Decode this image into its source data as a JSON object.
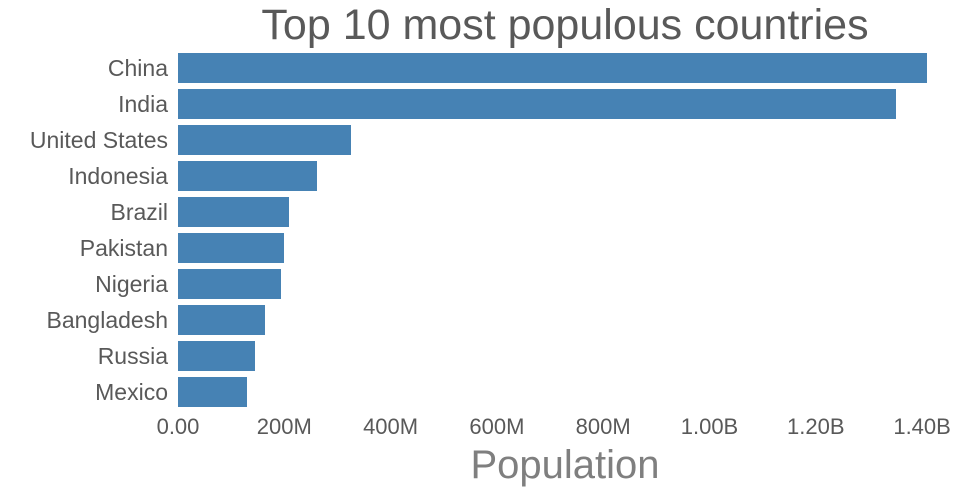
{
  "chart_data": {
    "type": "bar",
    "orientation": "horizontal",
    "title": "Top 10 most populous countries",
    "xlabel": "Population",
    "ylabel": "",
    "categories": [
      "China",
      "India",
      "United States",
      "Indonesia",
      "Brazil",
      "Pakistan",
      "Nigeria",
      "Bangladesh",
      "Russia",
      "Mexico"
    ],
    "values": [
      1410000000,
      1350000000,
      325000000,
      262000000,
      209000000,
      200000000,
      193000000,
      163000000,
      144000000,
      129000000
    ],
    "x_ticks": [
      {
        "label": "0.00",
        "value": 0
      },
      {
        "label": "200M",
        "value": 200000000
      },
      {
        "label": "400M",
        "value": 400000000
      },
      {
        "label": "600M",
        "value": 600000000
      },
      {
        "label": "800M",
        "value": 800000000
      },
      {
        "label": "1.00B",
        "value": 1000000000
      },
      {
        "label": "1.20B",
        "value": 1200000000
      },
      {
        "label": "1.40B",
        "value": 1400000000
      }
    ],
    "axis_max": 1445000000,
    "bar_color": "#4682b4",
    "grid": false,
    "legend": false
  }
}
